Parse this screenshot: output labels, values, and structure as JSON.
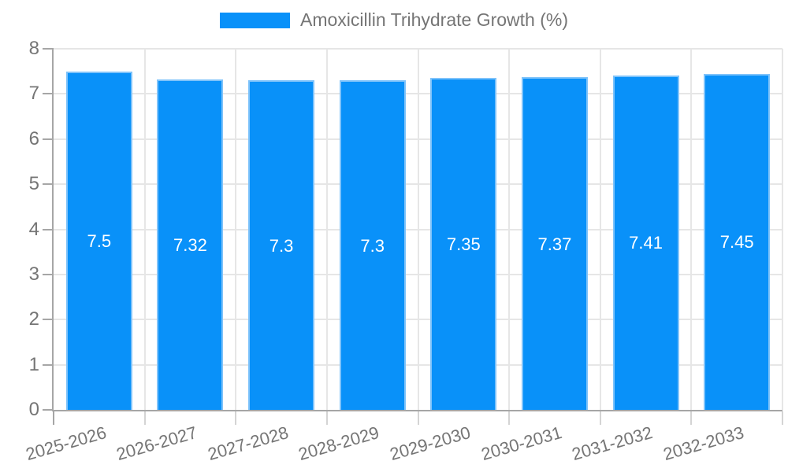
{
  "chart_data": {
    "type": "bar",
    "title": "",
    "legend": {
      "label": "Amoxicillin Trihydrate Growth (%)",
      "position": "top"
    },
    "categories": [
      "2025-2026",
      "2026-2027",
      "2027-2028",
      "2028-2029",
      "2029-2030",
      "2030-2031",
      "2031-2032",
      "2032-2033"
    ],
    "series": [
      {
        "name": "Amoxicillin Trihydrate Growth (%)",
        "values": [
          7.5,
          7.32,
          7.3,
          7.3,
          7.35,
          7.37,
          7.41,
          7.45
        ]
      }
    ],
    "value_labels": [
      "7.5",
      "7.32",
      "7.3",
      "7.3",
      "7.35",
      "7.37",
      "7.41",
      "7.45"
    ],
    "xlabel": "",
    "ylabel": "",
    "ylim": [
      0,
      8
    ],
    "y_ticks": [
      0,
      1,
      2,
      3,
      4,
      5,
      6,
      7,
      8
    ],
    "grid": true,
    "legend_position": "top",
    "colors": {
      "bar_fill": "#0991f9",
      "bar_border": "#7fc3fa",
      "grid_line": "#e6e6e6",
      "axis_line": "#a6a6a6",
      "x_tick": "#d4d4d4",
      "tick_text": "#757575",
      "value_text": "#ffffff",
      "background": "#ffffff"
    }
  }
}
